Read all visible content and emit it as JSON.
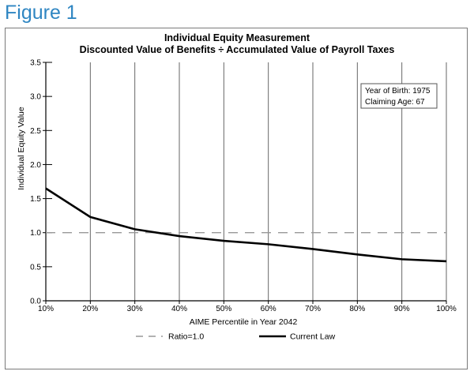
{
  "figure_label": "Figure 1",
  "chart_data": {
    "type": "line",
    "title": "Individual Equity Measurement",
    "subtitle": "Discounted Value of Benefits ÷ Accumulated Value of Payroll Taxes",
    "xlabel": "AIME Percentile in Year 2042",
    "ylabel": "Individual Equity Value",
    "x": [
      "10%",
      "20%",
      "30%",
      "40%",
      "50%",
      "60%",
      "70%",
      "80%",
      "90%",
      "100%"
    ],
    "ylim": [
      0,
      3.5
    ],
    "y_ticks": [
      "0.0",
      "0.5",
      "1.0",
      "1.5",
      "2.0",
      "2.5",
      "3.0",
      "3.5"
    ],
    "grid": "vertical",
    "annotation": [
      "Year of Birth: 1975",
      "Claiming Age: 67"
    ],
    "legend_position": "bottom",
    "series": [
      {
        "name": "Ratio=1.0",
        "style": "dashed",
        "color": "#999999",
        "values": [
          1.0,
          1.0,
          1.0,
          1.0,
          1.0,
          1.0,
          1.0,
          1.0,
          1.0,
          1.0
        ]
      },
      {
        "name": "Current Law",
        "style": "solid",
        "color": "#000000",
        "values": [
          1.65,
          1.23,
          1.05,
          0.95,
          0.88,
          0.83,
          0.76,
          0.68,
          0.61,
          0.58
        ]
      }
    ]
  }
}
